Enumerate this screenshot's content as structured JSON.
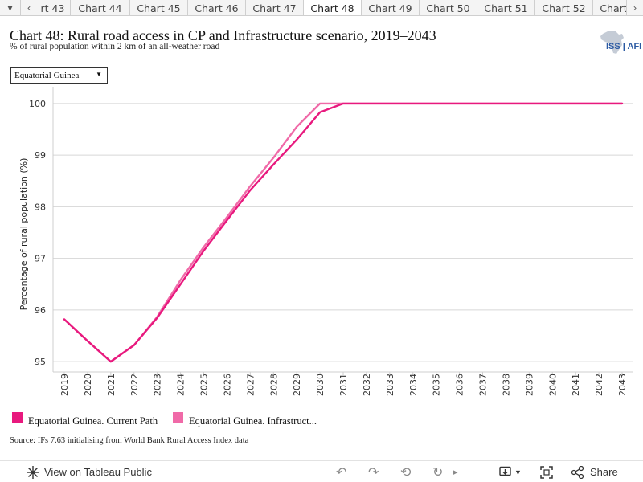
{
  "tabs": {
    "items": [
      {
        "label": "rt 43"
      },
      {
        "label": "Chart 44"
      },
      {
        "label": "Chart 45"
      },
      {
        "label": "Chart 46"
      },
      {
        "label": "Chart 47"
      },
      {
        "label": "Chart 48"
      },
      {
        "label": "Chart 49"
      },
      {
        "label": "Chart 50"
      },
      {
        "label": "Chart 51"
      },
      {
        "label": "Chart 52"
      },
      {
        "label": "Chart"
      }
    ],
    "active_index": 5,
    "dropdown_glyph": "▾",
    "prev_glyph": "‹",
    "next_glyph": "›"
  },
  "header": {
    "title": "Chart 48: Rural road access in CP and Infrastructure scenario, 2019–2043",
    "subtitle": "% of rural population within 2 km of an all-weather road",
    "logo_text": "ISS | AFI"
  },
  "selector": {
    "value": "Equatorial Guinea",
    "arrow": "▼"
  },
  "chart_data": {
    "type": "line",
    "title": "Chart 48: Rural road access in CP and Infrastructure scenario, 2019–2043",
    "subtitle": "% of rural population within 2 km of an all-weather road",
    "xlabel": "",
    "ylabel": "Percentage of rural population (%)",
    "x": [
      2019,
      2020,
      2021,
      2022,
      2023,
      2024,
      2025,
      2026,
      2027,
      2028,
      2029,
      2030,
      2031,
      2032,
      2033,
      2034,
      2035,
      2036,
      2037,
      2038,
      2039,
      2040,
      2041,
      2042,
      2043
    ],
    "yticks": [
      95,
      96,
      97,
      98,
      99,
      100
    ],
    "ylim": [
      94.8,
      100.2
    ],
    "grid": "horizontal",
    "legend_position": "bottom-left",
    "series": [
      {
        "name": "Equatorial Guinea. Current Path",
        "color": "#e8197e",
        "values": [
          95.82,
          95.4,
          95.0,
          95.32,
          95.85,
          96.5,
          97.15,
          97.74,
          98.32,
          98.82,
          99.3,
          99.83,
          100.0,
          100.0,
          100.0,
          100.0,
          100.0,
          100.0,
          100.0,
          100.0,
          100.0,
          100.0,
          100.0,
          100.0,
          100.0
        ]
      },
      {
        "name": "Equatorial Guinea. Infrastruct...",
        "color": "#f06aa8",
        "values": [
          95.82,
          95.4,
          95.0,
          95.32,
          95.87,
          96.58,
          97.22,
          97.8,
          98.4,
          98.95,
          99.55,
          100.0,
          100.0,
          100.0,
          100.0,
          100.0,
          100.0,
          100.0,
          100.0,
          100.0,
          100.0,
          100.0,
          100.0,
          100.0,
          100.0
        ]
      }
    ]
  },
  "source": "Source: IFs 7.63 initialising from World Bank Rural Access Index data",
  "toolbar": {
    "view_label": "View on Tableau Public",
    "share_label": "Share"
  }
}
